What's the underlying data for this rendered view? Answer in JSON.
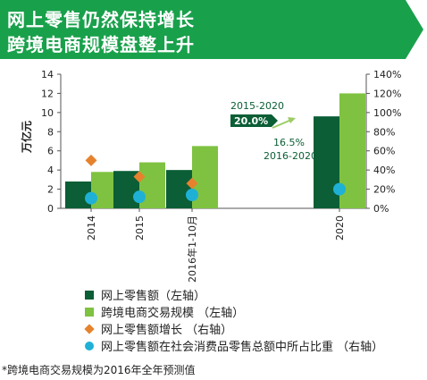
{
  "banner": {
    "line1": "网上零售仍然保持增长",
    "line2": "跨境电商规模盘整上升",
    "color": "#19a04b"
  },
  "chart_data": {
    "type": "bar",
    "categories": [
      "2014",
      "2015",
      "2016年1-10月",
      "2020"
    ],
    "ylabel_left": "万亿元",
    "ylim_left": [
      0,
      14
    ],
    "yticks_left": [
      "0",
      "2",
      "4",
      "6",
      "8",
      "10",
      "12",
      "14"
    ],
    "ylim_right": [
      0,
      140
    ],
    "yticks_right": [
      "0%",
      "20%",
      "40%",
      "60%",
      "80%",
      "100%",
      "120%",
      "140%"
    ],
    "series": [
      {
        "name": "网上零售额（左轴）",
        "kind": "bar",
        "axis": "left",
        "color": "#0b5e35",
        "values": [
          2.8,
          3.9,
          4.0,
          9.6
        ]
      },
      {
        "name": "跨境电商交易规模 （左轴）",
        "kind": "bar",
        "axis": "left",
        "color": "#7fc241",
        "values": [
          3.8,
          4.8,
          6.5,
          12.0
        ]
      },
      {
        "name": "网上零售额增长 （右轴）",
        "kind": "diamond",
        "axis": "right",
        "color": "#e6822e",
        "values": [
          50,
          33,
          26,
          null
        ]
      },
      {
        "name": "网上零售额在社会消费品零售总额中所占比重 （右轴）",
        "kind": "circle",
        "axis": "right",
        "color": "#1fb0d6",
        "values": [
          10.6,
          12.0,
          14.0,
          20.0
        ]
      }
    ],
    "annotations": {
      "range_top": "2015-2020",
      "label_top": "20.0%",
      "label_mid": "16.5%",
      "range_bottom": "2016-2020"
    },
    "grid": false
  },
  "footnote": "*跨境电商交易规模为2016年全年预测值"
}
